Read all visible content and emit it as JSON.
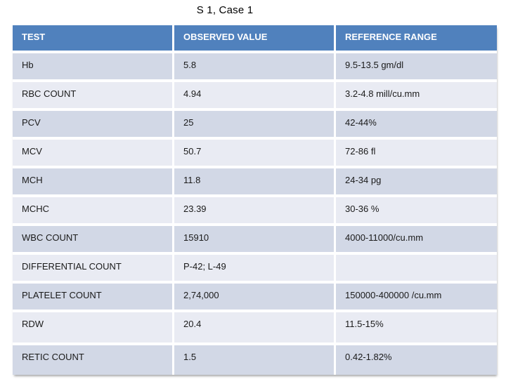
{
  "slide": {
    "title": "S 1, Case 1",
    "colors": {
      "header_bg": "#5081BD",
      "header_text": "#FFFFFF",
      "band_dark": "#D2D8E6",
      "band_light": "#E9EBF3",
      "cell_text": "#1A1A1A",
      "border": "#FFFFFF"
    },
    "table": {
      "columns": [
        "TEST",
        "OBSERVED VALUE",
        "REFERENCE RANGE"
      ],
      "rows": [
        {
          "test": "Hb",
          "observed": "5.8",
          "reference": "9.5-13.5 gm/dl"
        },
        {
          "test": "RBC COUNT",
          "observed": "4.94",
          "reference": "3.2-4.8 mill/cu.mm"
        },
        {
          "test": "PCV",
          "observed": "25",
          "reference": "42-44%"
        },
        {
          "test": "MCV",
          "observed": "50.7",
          "reference": "72-86 fl"
        },
        {
          "test": "MCH",
          "observed": "11.8",
          "reference": "24-34 pg"
        },
        {
          "test": "MCHC",
          "observed": "23.39",
          "reference": "30-36 %"
        },
        {
          "test": "WBC COUNT",
          "observed": "15910",
          "reference": "4000-11000/cu.mm"
        },
        {
          "test": "DIFFERENTIAL COUNT",
          "observed": "P-42; L-49",
          "reference": ""
        },
        {
          "test": "PLATELET COUNT",
          "observed": "2,74,000",
          "reference": "150000-400000 /cu.mm"
        },
        {
          "test": "RDW",
          "observed": "20.4",
          "reference": "11.5-15%"
        },
        {
          "test": "RETIC COUNT",
          "observed": "1.5",
          "reference": "0.42-1.82%"
        }
      ]
    }
  }
}
